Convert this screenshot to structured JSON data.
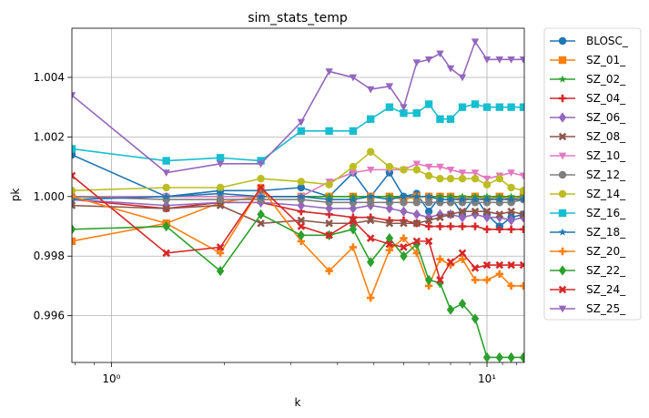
{
  "chart_data": {
    "type": "line",
    "title": "sim_stats_temp",
    "xlabel": "k",
    "ylabel": "pk",
    "xscale": "log",
    "xlim": [
      0.785,
      12.57
    ],
    "ylim": [
      0.99443,
      1.00565
    ],
    "grid": true,
    "legend_position": "outside-right",
    "x_ticks": [
      {
        "value": 1,
        "label": "10⁰"
      },
      {
        "value": 10,
        "label": "10¹"
      }
    ],
    "y_ticks": [
      {
        "value": 0.996,
        "label": "0.996"
      },
      {
        "value": 0.998,
        "label": "0.998"
      },
      {
        "value": 1.0,
        "label": "1.000"
      },
      {
        "value": 1.002,
        "label": "1.002"
      },
      {
        "value": 1.004,
        "label": "1.004"
      }
    ],
    "x": [
      0.785,
      1.4,
      1.95,
      2.5,
      3.2,
      3.8,
      4.4,
      4.9,
      5.5,
      6.0,
      6.5,
      7.0,
      7.5,
      8.0,
      8.6,
      9.3,
      10.0,
      10.8,
      11.6,
      12.5
    ],
    "series": [
      {
        "name": "BLOSC_",
        "color": "#1f77b4",
        "marker": "circle",
        "values": [
          1.0014,
          1.0,
          1.0002,
          1.0002,
          1.0003,
          1.0,
          1.0008,
          1.0,
          1.0008,
          1.0,
          1.0001,
          0.9995,
          1.0,
          1.0,
          0.9994,
          1.0,
          0.9994,
          0.999,
          0.9993,
          0.9994
        ]
      },
      {
        "name": "SZ_01_",
        "color": "#ff7f0e",
        "marker": "square",
        "values": [
          0.9985,
          0.9991,
          0.9998,
          1.0,
          1.0,
          1.0,
          1.0,
          1.0,
          1.0,
          0.9999,
          1.0,
          1.0,
          1.0,
          1.0,
          0.9999,
          1.0,
          0.9999,
          1.0,
          0.9999,
          1.0
        ]
      },
      {
        "name": "SZ_02_",
        "color": "#2ca02c",
        "marker": "star",
        "values": [
          1.0,
          1.0,
          1.0,
          1.0,
          1.0,
          1.0,
          1.0,
          1.0,
          1.0,
          1.0,
          1.0,
          1.0,
          1.0,
          1.0,
          1.0,
          1.0,
          1.0,
          1.0,
          1.0,
          1.0
        ]
      },
      {
        "name": "SZ_04_",
        "color": "#d62728",
        "marker": "plus",
        "values": [
          0.9999,
          0.9996,
          0.9998,
          0.9998,
          0.9995,
          0.9994,
          0.9993,
          0.9993,
          0.9992,
          0.9992,
          0.9991,
          0.999,
          0.999,
          0.999,
          0.999,
          0.999,
          0.9989,
          0.9989,
          0.9989,
          0.9989
        ]
      },
      {
        "name": "SZ_06_",
        "color": "#9467bd",
        "marker": "diamond",
        "values": [
          0.9999,
          0.9997,
          0.9998,
          0.9998,
          0.9997,
          0.9996,
          0.9996,
          0.9997,
          0.9996,
          0.9995,
          0.9994,
          0.9993,
          0.9994,
          0.9994,
          0.9993,
          0.9994,
          0.9993,
          0.9993,
          0.9992,
          0.9993
        ]
      },
      {
        "name": "SZ_08_",
        "color": "#8c564b",
        "marker": "x",
        "values": [
          0.9997,
          0.9996,
          0.9997,
          0.9991,
          0.9992,
          0.9991,
          0.9991,
          0.9992,
          0.9991,
          0.9991,
          0.9991,
          0.9992,
          0.9993,
          0.9994,
          0.9995,
          0.9995,
          0.9995,
          0.9994,
          0.9995,
          0.9994
        ]
      },
      {
        "name": "SZ_10_",
        "color": "#e377c2",
        "marker": "triangle-down",
        "values": [
          1.0,
          1.0,
          1.0,
          1.0,
          1.0,
          1.0005,
          1.0008,
          1.0009,
          1.0009,
          1.0009,
          1.0011,
          1.001,
          1.001,
          1.0009,
          1.0008,
          1.0008,
          1.0006,
          1.0007,
          1.0008,
          1.0007
        ]
      },
      {
        "name": "SZ_12_",
        "color": "#7f7f7f",
        "marker": "circle",
        "values": [
          1.0,
          0.9999,
          0.9999,
          0.9999,
          0.9999,
          0.9998,
          0.9998,
          0.9998,
          0.9998,
          0.9998,
          0.9998,
          0.9998,
          0.9998,
          0.9998,
          0.9998,
          0.9998,
          0.9998,
          0.9998,
          0.9998,
          0.9999
        ]
      },
      {
        "name": "SZ_14_",
        "color": "#bcbd22",
        "marker": "circle",
        "values": [
          1.0002,
          1.0003,
          1.0003,
          1.0006,
          1.0005,
          1.0004,
          1.001,
          1.0015,
          1.001,
          1.0009,
          1.0009,
          1.0007,
          1.0006,
          1.0006,
          1.0006,
          1.0006,
          1.0004,
          1.0006,
          1.0003,
          1.0002
        ]
      },
      {
        "name": "SZ_16_",
        "color": "#17becf",
        "marker": "square",
        "values": [
          1.0016,
          1.0012,
          1.0013,
          1.0012,
          1.0022,
          1.0022,
          1.0022,
          1.0026,
          1.003,
          1.0028,
          1.0028,
          1.0031,
          1.0026,
          1.0026,
          1.003,
          1.0031,
          1.003,
          1.003,
          1.003,
          1.003
        ]
      },
      {
        "name": "SZ_18_",
        "color": "#1f77b4",
        "marker": "star",
        "values": [
          0.9999,
          1.0,
          1.0001,
          1.0,
          1.0,
          0.9999,
          0.9999,
          1.0,
          0.9999,
          1.0,
          1.0,
          1.0,
          0.9999,
          0.9999,
          0.9999,
          0.9999,
          0.9999,
          0.9999,
          0.9999,
          0.9999
        ]
      },
      {
        "name": "SZ_20_",
        "color": "#ff7f0e",
        "marker": "plus",
        "values": [
          1.0,
          0.9991,
          0.9981,
          1.0003,
          0.9985,
          0.9975,
          0.9983,
          0.9966,
          0.9982,
          0.9986,
          0.9981,
          0.997,
          0.9979,
          0.9977,
          0.9979,
          0.9972,
          0.9972,
          0.9974,
          0.997,
          0.997
        ]
      },
      {
        "name": "SZ_22_",
        "color": "#2ca02c",
        "marker": "diamond",
        "values": [
          0.9989,
          0.999,
          0.9975,
          0.9994,
          0.9987,
          0.9987,
          0.9989,
          0.9978,
          0.9986,
          0.998,
          0.9984,
          0.9972,
          0.9971,
          0.9962,
          0.9964,
          0.9959,
          0.9946,
          0.9946,
          0.9946,
          0.9946
        ]
      },
      {
        "name": "SZ_24_",
        "color": "#d62728",
        "marker": "x",
        "values": [
          1.0007,
          0.9981,
          0.9983,
          1.0003,
          0.999,
          0.9987,
          0.9992,
          0.9986,
          0.9984,
          0.9983,
          0.9985,
          0.9985,
          0.9972,
          0.9978,
          0.9981,
          0.9976,
          0.9977,
          0.9977,
          0.9977,
          0.9977
        ]
      },
      {
        "name": "SZ_25_",
        "color": "#9467bd",
        "marker": "triangle-down",
        "values": [
          1.0034,
          1.0008,
          1.0011,
          1.0011,
          1.0025,
          1.0042,
          1.004,
          1.0036,
          1.0037,
          1.003,
          1.0045,
          1.0046,
          1.0048,
          1.0043,
          1.004,
          1.0052,
          1.0046,
          1.0046,
          1.0046,
          1.0046
        ]
      }
    ]
  }
}
